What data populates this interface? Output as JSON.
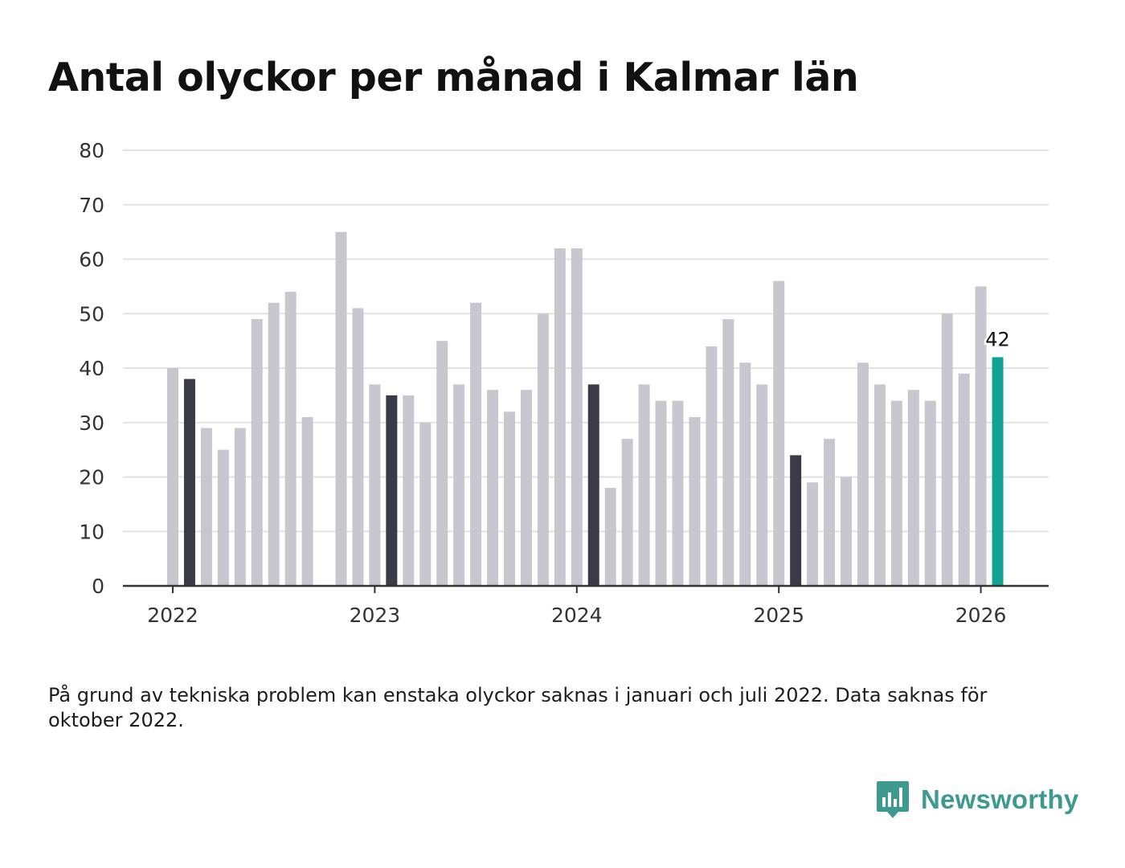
{
  "title": "Antal olyckor per månad i Kalmar län",
  "footnote": "På grund av tekniska problem kan enstaka olyckor saknas i januari och juli 2022. Data saknas för oktober 2022.",
  "brand": {
    "name": "Newsworthy",
    "logo_icon": "newsworthy-bar-chart-speech-bubble-icon"
  },
  "colors": {
    "bar_default": "#c8c7cf",
    "bar_february": "#3b3a48",
    "bar_latest": "#12a293",
    "grid": "#e2e2e2",
    "axis": "#333333",
    "brand": "#3e9a8f"
  },
  "chart_data": {
    "type": "bar",
    "title": "Antal olyckor per månad i Kalmar län",
    "xlabel": "",
    "ylabel": "",
    "ylim": [
      0,
      80
    ],
    "yticks": [
      0,
      10,
      20,
      30,
      40,
      50,
      60,
      70,
      80
    ],
    "xtick_labels": [
      "2022",
      "2023",
      "2024",
      "2025",
      "2026"
    ],
    "grid": true,
    "highlight_label": "42",
    "months": [
      "2022-01",
      "2022-02",
      "2022-03",
      "2022-04",
      "2022-05",
      "2022-06",
      "2022-07",
      "2022-08",
      "2022-09",
      "2022-10",
      "2022-11",
      "2022-12",
      "2023-01",
      "2023-02",
      "2023-03",
      "2023-04",
      "2023-05",
      "2023-06",
      "2023-07",
      "2023-08",
      "2023-09",
      "2023-10",
      "2023-11",
      "2023-12",
      "2024-01",
      "2024-02",
      "2024-03",
      "2024-04",
      "2024-05",
      "2024-06",
      "2024-07",
      "2024-08",
      "2024-09",
      "2024-10",
      "2024-11",
      "2024-12",
      "2025-01",
      "2025-02",
      "2025-03",
      "2025-04",
      "2025-05",
      "2025-06",
      "2025-07",
      "2025-08",
      "2025-09",
      "2025-10",
      "2025-11",
      "2025-12",
      "2026-01",
      "2026-02"
    ],
    "values": [
      40,
      38,
      29,
      25,
      29,
      49,
      52,
      54,
      31,
      null,
      65,
      51,
      37,
      35,
      35,
      30,
      45,
      37,
      52,
      36,
      32,
      36,
      50,
      62,
      62,
      37,
      18,
      27,
      37,
      34,
      34,
      31,
      44,
      49,
      41,
      37,
      56,
      24,
      19,
      27,
      20,
      41,
      37,
      34,
      36,
      34,
      50,
      39,
      55,
      42
    ]
  }
}
